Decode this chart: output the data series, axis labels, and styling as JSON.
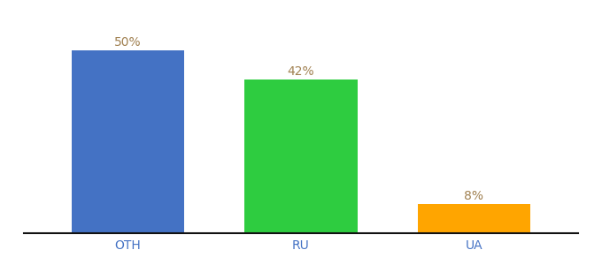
{
  "categories": [
    "OTH",
    "RU",
    "UA"
  ],
  "values": [
    50,
    42,
    8
  ],
  "bar_colors": [
    "#4472C4",
    "#2ECC40",
    "#FFA500"
  ],
  "labels": [
    "50%",
    "42%",
    "8%"
  ],
  "ylim": [
    0,
    58
  ],
  "label_fontsize": 10,
  "tick_fontsize": 10,
  "label_color": "#a08050",
  "background_color": "#ffffff",
  "bar_width": 0.65
}
